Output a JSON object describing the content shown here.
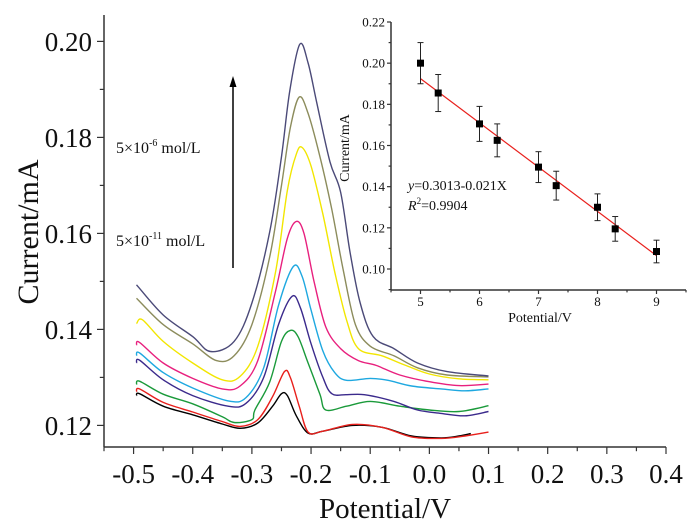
{
  "chart_data": [
    {
      "type": "line",
      "xlabel": "Potential/V",
      "ylabel": "Current/mA",
      "xlim": [
        -0.55,
        0.4
      ],
      "ylim": [
        0.1155,
        0.2055
      ],
      "xticks": [
        "-0.5",
        "-0.4",
        "-0.3",
        "-0.2",
        "-0.1",
        "0.0",
        "0.1",
        "0.2",
        "0.3",
        "0.4"
      ],
      "xtick_values": [
        -0.5,
        -0.4,
        -0.3,
        -0.2,
        -0.1,
        0.0,
        0.1,
        0.2,
        0.3,
        0.4
      ],
      "yticks": [
        "0.12",
        "0.14",
        "0.16",
        "0.18",
        "0.20"
      ],
      "ytick_values": [
        0.12,
        0.14,
        0.16,
        0.18,
        0.2
      ],
      "grid": false,
      "annotations": {
        "top_label": {
          "base": "5×10",
          "exp": "-6",
          "unit": " mol/L"
        },
        "bottom_label": {
          "base": "5×10",
          "exp": "-11",
          "unit": " mol/L"
        },
        "arrow": "increasing concentration upward"
      },
      "series": [
        {
          "color": "#000000",
          "points": [
            [
              -0.495,
              0.1262
            ],
            [
              -0.49,
              0.1266
            ],
            [
              -0.45,
              0.124
            ],
            [
              -0.4,
              0.1222
            ],
            [
              -0.35,
              0.1203
            ],
            [
              -0.32,
              0.1194
            ],
            [
              -0.29,
              0.1205
            ],
            [
              -0.265,
              0.124
            ],
            [
              -0.25,
              0.1266
            ],
            [
              -0.24,
              0.1262
            ],
            [
              -0.225,
              0.122
            ],
            [
              -0.205,
              0.1184
            ],
            [
              -0.18,
              0.1188
            ],
            [
              -0.13,
              0.12
            ],
            [
              -0.08,
              0.1196
            ],
            [
              -0.03,
              0.1178
            ],
            [
              0.02,
              0.1174
            ],
            [
              0.05,
              0.1178
            ],
            [
              0.07,
              0.1183
            ]
          ]
        },
        {
          "color": "#e8201c",
          "points": [
            [
              -0.495,
              0.127
            ],
            [
              -0.49,
              0.1276
            ],
            [
              -0.45,
              0.1248
            ],
            [
              -0.4,
              0.1228
            ],
            [
              -0.35,
              0.1208
            ],
            [
              -0.32,
              0.1198
            ],
            [
              -0.29,
              0.1212
            ],
            [
              -0.265,
              0.126
            ],
            [
              -0.245,
              0.1312
            ],
            [
              -0.235,
              0.13
            ],
            [
              -0.22,
              0.124
            ],
            [
              -0.205,
              0.1186
            ],
            [
              -0.18,
              0.1188
            ],
            [
              -0.13,
              0.1202
            ],
            [
              -0.08,
              0.1196
            ],
            [
              -0.03,
              0.1176
            ],
            [
              0.02,
              0.1173
            ],
            [
              0.06,
              0.1178
            ],
            [
              0.1,
              0.1186
            ]
          ]
        },
        {
          "color": "#1a9a3a",
          "points": [
            [
              -0.495,
              0.1285
            ],
            [
              -0.49,
              0.1292
            ],
            [
              -0.45,
              0.1265
            ],
            [
              -0.4,
              0.1245
            ],
            [
              -0.35,
              0.1218
            ],
            [
              -0.33,
              0.1206
            ],
            [
              -0.3,
              0.1212
            ],
            [
              -0.295,
              0.1232
            ],
            [
              -0.27,
              0.129
            ],
            [
              -0.25,
              0.1375
            ],
            [
              -0.235,
              0.1398
            ],
            [
              -0.222,
              0.1385
            ],
            [
              -0.205,
              0.133
            ],
            [
              -0.185,
              0.1265
            ],
            [
              -0.175,
              0.1232
            ],
            [
              -0.14,
              0.124
            ],
            [
              -0.1,
              0.125
            ],
            [
              -0.05,
              0.124
            ],
            [
              0.0,
              0.1232
            ],
            [
              0.05,
              0.1229
            ],
            [
              0.1,
              0.1241
            ]
          ]
        },
        {
          "color": "#3b2a8c",
          "points": [
            [
              -0.495,
              0.133
            ],
            [
              -0.49,
              0.1336
            ],
            [
              -0.45,
              0.1295
            ],
            [
              -0.4,
              0.1262
            ],
            [
              -0.34,
              0.124
            ],
            [
              -0.31,
              0.1246
            ],
            [
              -0.28,
              0.13
            ],
            [
              -0.255,
              0.141
            ],
            [
              -0.232,
              0.1469
            ],
            [
              -0.218,
              0.1445
            ],
            [
              -0.2,
              0.137
            ],
            [
              -0.18,
              0.13
            ],
            [
              -0.165,
              0.1266
            ],
            [
              -0.14,
              0.1264
            ],
            [
              -0.11,
              0.1264
            ],
            [
              -0.06,
              0.125
            ],
            [
              -0.02,
              0.1232
            ],
            [
              0.02,
              0.1225
            ],
            [
              0.06,
              0.122
            ],
            [
              0.1,
              0.1229
            ]
          ]
        },
        {
          "color": "#1ea8e0",
          "points": [
            [
              -0.495,
              0.1345
            ],
            [
              -0.49,
              0.1351
            ],
            [
              -0.45,
              0.131
            ],
            [
              -0.4,
              0.1278
            ],
            [
              -0.34,
              0.1251
            ],
            [
              -0.31,
              0.1258
            ],
            [
              -0.28,
              0.132
            ],
            [
              -0.255,
              0.145
            ],
            [
              -0.23,
              0.1531
            ],
            [
              -0.215,
              0.151
            ],
            [
              -0.2,
              0.144
            ],
            [
              -0.18,
              0.1355
            ],
            [
              -0.16,
              0.131
            ],
            [
              -0.14,
              0.1294
            ],
            [
              -0.1,
              0.1298
            ],
            [
              -0.07,
              0.1294
            ],
            [
              -0.03,
              0.1282
            ],
            [
              0.02,
              0.1276
            ],
            [
              0.06,
              0.1272
            ],
            [
              0.1,
              0.1276
            ]
          ]
        },
        {
          "color": "#e8207e",
          "points": [
            [
              -0.495,
              0.1367
            ],
            [
              -0.49,
              0.1373
            ],
            [
              -0.45,
              0.133
            ],
            [
              -0.4,
              0.1298
            ],
            [
              -0.35,
              0.1276
            ],
            [
              -0.32,
              0.1282
            ],
            [
              -0.29,
              0.1335
            ],
            [
              -0.26,
              0.148
            ],
            [
              -0.24,
              0.159
            ],
            [
              -0.225,
              0.1625
            ],
            [
              -0.212,
              0.16
            ],
            [
              -0.195,
              0.15
            ],
            [
              -0.175,
              0.1405
            ],
            [
              -0.15,
              0.136
            ],
            [
              -0.12,
              0.1335
            ],
            [
              -0.09,
              0.1325
            ],
            [
              -0.05,
              0.1305
            ],
            [
              0.0,
              0.1291
            ],
            [
              0.05,
              0.1283
            ],
            [
              0.1,
              0.1286
            ]
          ]
        },
        {
          "color": "#f2e600",
          "points": [
            [
              -0.495,
              0.1412
            ],
            [
              -0.485,
              0.142
            ],
            [
              -0.45,
              0.1375
            ],
            [
              -0.4,
              0.133
            ],
            [
              -0.35,
              0.1295
            ],
            [
              -0.32,
              0.1302
            ],
            [
              -0.29,
              0.1365
            ],
            [
              -0.26,
              0.152
            ],
            [
              -0.24,
              0.169
            ],
            [
              -0.225,
              0.1765
            ],
            [
              -0.215,
              0.1779
            ],
            [
              -0.2,
              0.174
            ],
            [
              -0.18,
              0.164
            ],
            [
              -0.16,
              0.152
            ],
            [
              -0.14,
              0.142
            ],
            [
              -0.12,
              0.136
            ],
            [
              -0.08,
              0.1345
            ],
            [
              -0.04,
              0.1325
            ],
            [
              0.0,
              0.1307
            ],
            [
              0.05,
              0.1297
            ],
            [
              0.1,
              0.1295
            ]
          ]
        },
        {
          "color": "#8c8c5c",
          "points": [
            [
              -0.495,
              0.1465
            ],
            [
              -0.45,
              0.141
            ],
            [
              -0.4,
              0.137
            ],
            [
              -0.36,
              0.1335
            ],
            [
              -0.33,
              0.1345
            ],
            [
              -0.3,
              0.141
            ],
            [
              -0.27,
              0.155
            ],
            [
              -0.25,
              0.17
            ],
            [
              -0.235,
              0.182
            ],
            [
              -0.22,
              0.1884
            ],
            [
              -0.205,
              0.185
            ],
            [
              -0.185,
              0.176
            ],
            [
              -0.165,
              0.165
            ],
            [
              -0.145,
              0.152
            ],
            [
              -0.125,
              0.141
            ],
            [
              -0.1,
              0.1365
            ],
            [
              -0.06,
              0.1345
            ],
            [
              -0.02,
              0.132
            ],
            [
              0.03,
              0.1305
            ],
            [
              0.1,
              0.1301
            ]
          ]
        },
        {
          "color": "#4b4a78",
          "points": [
            [
              -0.495,
              0.1493
            ],
            [
              -0.45,
              0.143
            ],
            [
              -0.4,
              0.1385
            ],
            [
              -0.37,
              0.1354
            ],
            [
              -0.33,
              0.1375
            ],
            [
              -0.3,
              0.1455
            ],
            [
              -0.27,
              0.1602
            ],
            [
              -0.25,
              0.176
            ],
            [
              -0.236,
              0.1897
            ],
            [
              -0.219,
              0.1994
            ],
            [
              -0.205,
              0.1955
            ],
            [
              -0.19,
              0.187
            ],
            [
              -0.168,
              0.1749
            ],
            [
              -0.15,
              0.1686
            ],
            [
              -0.134,
              0.156
            ],
            [
              -0.117,
              0.1455
            ],
            [
              -0.095,
              0.1385
            ],
            [
              -0.06,
              0.136
            ],
            [
              -0.02,
              0.133
            ],
            [
              0.03,
              0.1312
            ],
            [
              0.1,
              0.1303
            ]
          ]
        }
      ]
    },
    {
      "type": "scatter",
      "xlabel": "Potential/V",
      "ylabel": "Current/mA",
      "xlim": [
        4.5,
        9.5
      ],
      "ylim": [
        0.0898,
        0.22
      ],
      "xticks": [
        "5",
        "6",
        "7",
        "8",
        "9"
      ],
      "xtick_values": [
        5,
        6,
        7,
        8,
        9
      ],
      "yticks": [
        "0.10",
        "0.12",
        "0.14",
        "0.16",
        "0.18",
        "0.20",
        "0.22"
      ],
      "ytick_values": [
        0.1,
        0.12,
        0.14,
        0.16,
        0.18,
        0.2,
        0.22
      ],
      "grid": false,
      "marker_color": "#000000",
      "fit_color": "#e8201c",
      "x": [
        5,
        5.3,
        6,
        6.3,
        7,
        7.3,
        8,
        8.3,
        9
      ],
      "y": [
        0.2,
        0.1855,
        0.1705,
        0.1625,
        0.1495,
        0.1405,
        0.13,
        0.1195,
        0.1085
      ],
      "error": [
        0.01,
        0.009,
        0.0085,
        0.008,
        0.0075,
        0.007,
        0.0065,
        0.006,
        0.0055
      ],
      "fit_line": [
        [
          5,
          0.1925
        ],
        [
          9,
          0.1065
        ]
      ],
      "equation": {
        "y": "y",
        "rhs": "=0.3013-0.021X"
      },
      "r2": {
        "R": "R",
        "sup": "2",
        "rhs": "=0.9904"
      }
    }
  ]
}
